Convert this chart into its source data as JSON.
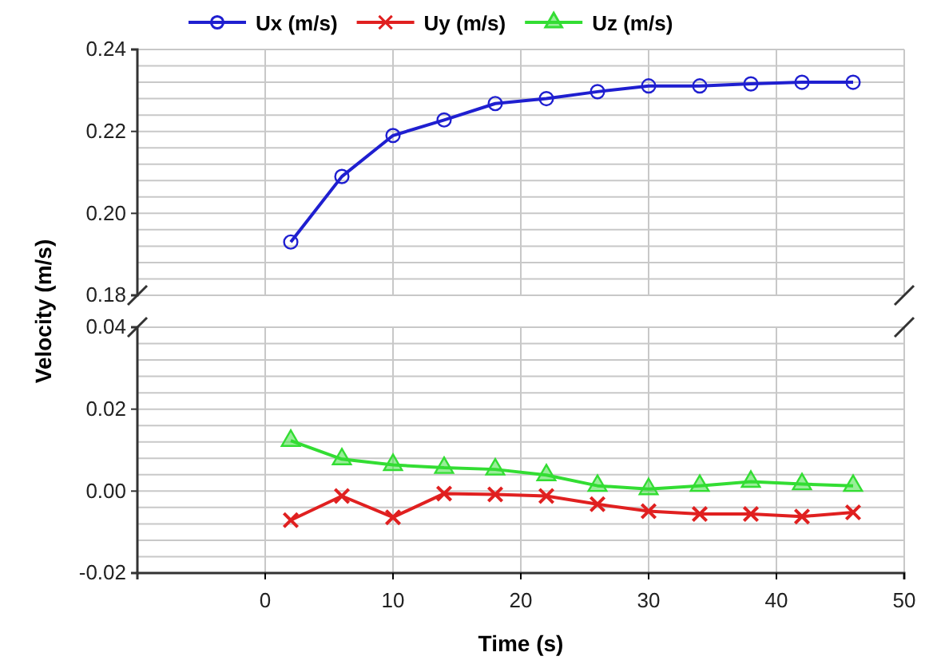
{
  "chart_data": [
    {
      "type": "line",
      "ylabel": "Velocity (m/s)",
      "x": [
        2,
        6,
        10,
        14,
        18,
        22,
        26,
        30,
        34,
        38,
        42,
        46
      ],
      "xlim": [
        -10,
        50
      ],
      "xticks": [
        0,
        10,
        20,
        30,
        40,
        50
      ],
      "ylim": [
        0.18,
        0.24
      ],
      "yticks": [
        {
          "value": 0.18,
          "label": "0.18"
        },
        {
          "value": 0.184,
          "label": null
        },
        {
          "value": 0.188,
          "label": null
        },
        {
          "value": 0.192,
          "label": null
        },
        {
          "value": 0.196,
          "label": null
        },
        {
          "value": 0.2,
          "label": "0.20"
        },
        {
          "value": 0.204,
          "label": null
        },
        {
          "value": 0.208,
          "label": null
        },
        {
          "value": 0.212,
          "label": null
        },
        {
          "value": 0.216,
          "label": null
        },
        {
          "value": 0.22,
          "label": "0.22"
        },
        {
          "value": 0.224,
          "label": null
        },
        {
          "value": 0.228,
          "label": null
        },
        {
          "value": 0.232,
          "label": null
        },
        {
          "value": 0.236,
          "label": null
        },
        {
          "value": 0.24,
          "label": "0.24"
        }
      ],
      "tick_labels": "y",
      "grid": true,
      "legend": "top",
      "series": [
        {
          "name": "Ux (m/s)",
          "color": "#1f1fd0",
          "marker": "circle",
          "values": [
            0.193,
            0.209,
            0.219,
            0.2228,
            0.2268,
            0.228,
            0.2297,
            0.2311,
            0.2311,
            0.2316,
            0.232,
            0.232
          ]
        }
      ]
    },
    {
      "type": "line",
      "xlabel": "Time (s)",
      "x": [
        2,
        6,
        10,
        14,
        18,
        22,
        26,
        30,
        34,
        38,
        42,
        46
      ],
      "xlim": [
        -10,
        50
      ],
      "xticks": [
        0,
        10,
        20,
        30,
        40,
        50
      ],
      "ylim": [
        -0.02,
        0.04
      ],
      "yticks": [
        {
          "value": -0.02,
          "label": "-0.02"
        },
        {
          "value": -0.016,
          "label": null
        },
        {
          "value": -0.012,
          "label": null
        },
        {
          "value": -0.008,
          "label": null
        },
        {
          "value": -0.004,
          "label": null
        },
        {
          "value": 0,
          "label": "0.00"
        },
        {
          "value": 0.004,
          "label": null
        },
        {
          "value": 0.008,
          "label": null
        },
        {
          "value": 0.012,
          "label": null
        },
        {
          "value": 0.016,
          "label": null
        },
        {
          "value": 0.02,
          "label": "0.02"
        },
        {
          "value": 0.024,
          "label": null
        },
        {
          "value": 0.028,
          "label": null
        },
        {
          "value": 0.032,
          "label": null
        },
        {
          "value": 0.036,
          "label": null
        },
        {
          "value": 0.04,
          "label": "0.04"
        }
      ],
      "grid": true,
      "legend": "top",
      "series": [
        {
          "name": "Uy (m/s)",
          "color": "#e02020",
          "marker": "cross",
          "values": [
            -0.0071,
            -0.0012,
            -0.0064,
            -0.0006,
            -0.0008,
            -0.0012,
            -0.0032,
            -0.0049,
            -0.0056,
            -0.0056,
            -0.0062,
            -0.0052
          ]
        },
        {
          "name": "Uz (m/s)",
          "color": "#33dd33",
          "marker": "triangle",
          "values": [
            0.0123,
            0.0078,
            0.0064,
            0.0057,
            0.0053,
            0.0039,
            0.0013,
            0.0005,
            0.0013,
            0.0023,
            0.0017,
            0.0013
          ]
        }
      ]
    }
  ]
}
